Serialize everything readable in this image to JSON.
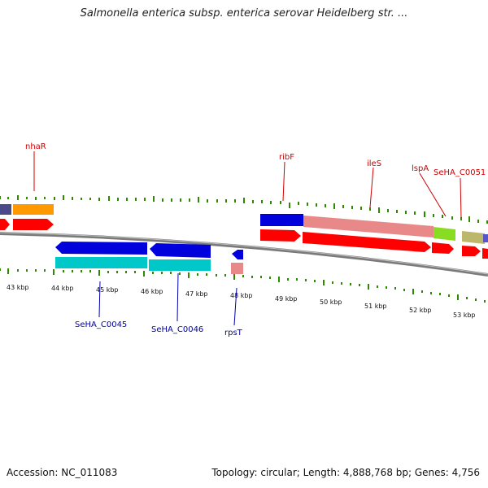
{
  "title": "Salmonella enterica subsp. enterica serovar Heidelberg str. ...",
  "footer": {
    "accession": "Accession: NC_011083",
    "summary": "Topology: circular; Length: 4,888,768 bp; Genes: 4,756"
  },
  "kbp_labels": [
    "43 kbp",
    "44 kbp",
    "45 kbp",
    "46 kbp",
    "47 kbp",
    "48 kbp",
    "49 kbp",
    "50 kbp",
    "51 kbp",
    "52 kbp",
    "53 kbp"
  ],
  "gene_labels_top": [
    "nhaR",
    "ribF",
    "ileS",
    "lspA",
    "SeHA_C0051"
  ],
  "gene_labels_bottom": [
    "SeHA_C0045",
    "SeHA_C0046",
    "rpsT"
  ],
  "colors": {
    "backbone": "#888888",
    "tick": "#2e8b00",
    "red": "#ff0000",
    "blue": "#0000dd",
    "cyan": "#00c8c8",
    "pink": "#e88888",
    "orange": "#ff9900",
    "olive": "#bdb76b",
    "lime": "#88dd22",
    "label_red": "#cc0000",
    "label_blue": "#0000aa"
  }
}
